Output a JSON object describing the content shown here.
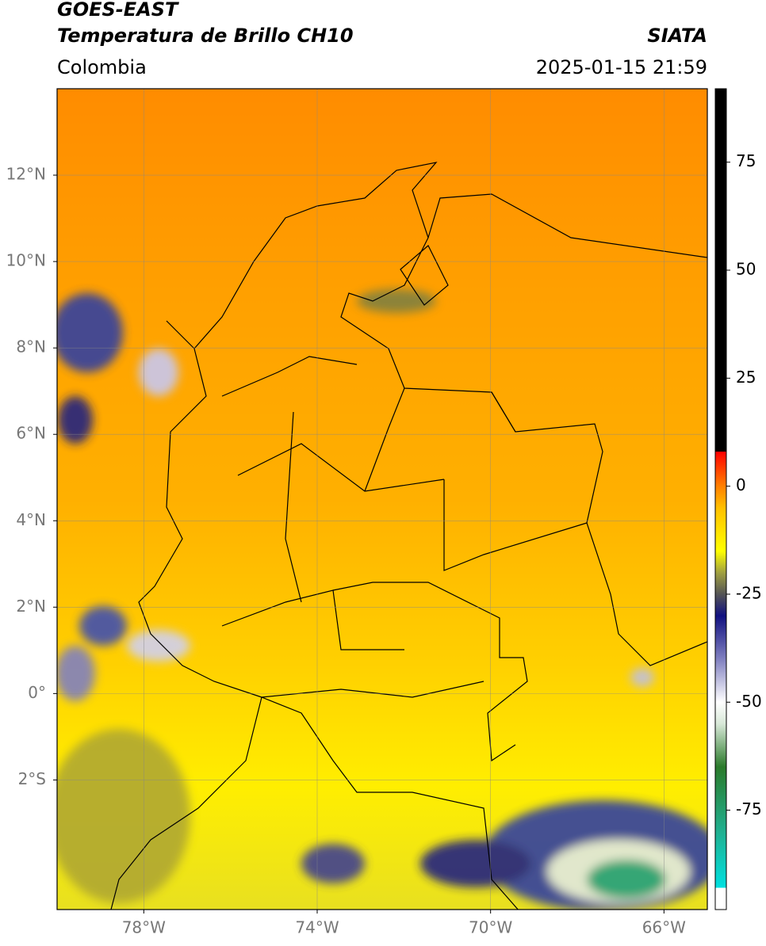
{
  "header": {
    "title": "GOES-EAST",
    "subtitle": "Temperatura de Brillo CH10",
    "source": "SIATA",
    "region": "Colombia",
    "datetime": "2025-01-15 21:59"
  },
  "map": {
    "lon_range": [
      -80,
      -65
    ],
    "lat_range": [
      -5,
      14
    ],
    "grid": true,
    "lon_ticks": [
      {
        "value": -78,
        "label": "78°W"
      },
      {
        "value": -74,
        "label": "74°W"
      },
      {
        "value": -70,
        "label": "70°W"
      },
      {
        "value": -66,
        "label": "66°W"
      }
    ],
    "lat_ticks": [
      {
        "value": 12,
        "label": "12°N"
      },
      {
        "value": 10,
        "label": "10°N"
      },
      {
        "value": 8,
        "label": "8°N"
      },
      {
        "value": 6,
        "label": "6°N"
      },
      {
        "value": 4,
        "label": "4°N"
      },
      {
        "value": 2,
        "label": "2°N"
      },
      {
        "value": 0,
        "label": "0°"
      },
      {
        "value": -2,
        "label": "2°S"
      }
    ]
  },
  "colorbar": {
    "range": [
      -98,
      92
    ],
    "ticks": [
      75,
      50,
      25,
      0,
      -25,
      -50,
      -75
    ],
    "colormap": [
      {
        "value": -98,
        "color": "#ffffff"
      },
      {
        "value": -93,
        "color": "#ffffff"
      },
      {
        "value": -93,
        "color": "#00e0e0"
      },
      {
        "value": -80,
        "color": "#20b090"
      },
      {
        "value": -65,
        "color": "#2a7a2a"
      },
      {
        "value": -55,
        "color": "#d8e8d8"
      },
      {
        "value": -50,
        "color": "#ffffff"
      },
      {
        "value": -40,
        "color": "#8080c0"
      },
      {
        "value": -30,
        "color": "#101080"
      },
      {
        "value": -25,
        "color": "#555555"
      },
      {
        "value": -20,
        "color": "#a0a040"
      },
      {
        "value": -15,
        "color": "#ffff00"
      },
      {
        "value": -5,
        "color": "#ffc000"
      },
      {
        "value": 0,
        "color": "#ff8000"
      },
      {
        "value": 8,
        "color": "#ff0000"
      },
      {
        "value": 8,
        "color": "#000000"
      },
      {
        "value": 92,
        "color": "#000000"
      }
    ]
  }
}
